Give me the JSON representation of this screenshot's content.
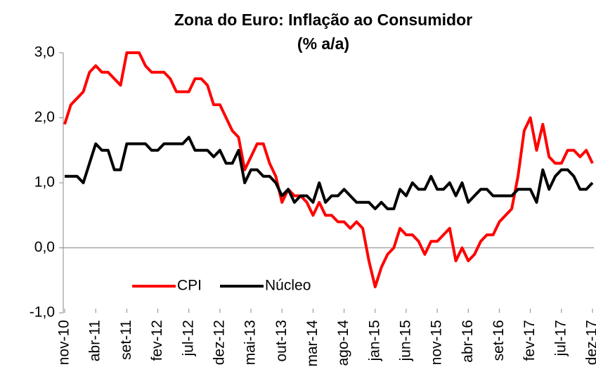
{
  "chart_data": {
    "type": "line",
    "title": "Zona do Euro: Inflação ao Consumidor",
    "subtitle": "(% a/a)",
    "categories": [
      "nov-10",
      null,
      null,
      null,
      null,
      "abr-11",
      null,
      null,
      null,
      null,
      "set-11",
      null,
      null,
      null,
      null,
      "fev-12",
      null,
      null,
      null,
      null,
      "jul-12",
      null,
      null,
      null,
      null,
      "dez-12",
      null,
      null,
      null,
      null,
      "mai-13",
      null,
      null,
      null,
      null,
      "out-13",
      null,
      null,
      null,
      null,
      "mar-14",
      null,
      null,
      null,
      null,
      "ago-14",
      null,
      null,
      null,
      null,
      "jan-15",
      null,
      null,
      null,
      null,
      "jun-15",
      null,
      null,
      null,
      null,
      "nov-15",
      null,
      null,
      null,
      null,
      "abr-16",
      null,
      null,
      null,
      null,
      "set-16",
      null,
      null,
      null,
      null,
      "fev-17",
      null,
      null,
      null,
      null,
      "jul-17",
      null,
      null,
      null,
      null,
      "dez-17"
    ],
    "series": [
      {
        "name": "CPI",
        "color": "#ff0000",
        "values": [
          1.9,
          2.2,
          2.3,
          2.4,
          2.7,
          2.8,
          2.7,
          2.7,
          2.6,
          2.5,
          3.0,
          3.0,
          3.0,
          2.8,
          2.7,
          2.7,
          2.7,
          2.6,
          2.4,
          2.4,
          2.4,
          2.6,
          2.6,
          2.5,
          2.2,
          2.2,
          2.0,
          1.8,
          1.7,
          1.2,
          1.4,
          1.6,
          1.6,
          1.3,
          1.1,
          0.7,
          0.9,
          0.8,
          0.8,
          0.7,
          0.5,
          0.7,
          0.5,
          0.5,
          0.4,
          0.4,
          0.3,
          0.4,
          0.3,
          -0.2,
          -0.6,
          -0.3,
          -0.1,
          0.0,
          0.3,
          0.2,
          0.2,
          0.1,
          -0.1,
          0.1,
          0.1,
          0.2,
          0.3,
          -0.2,
          0.0,
          -0.2,
          -0.1,
          0.1,
          0.2,
          0.2,
          0.4,
          0.5,
          0.6,
          1.1,
          1.8,
          2.0,
          1.5,
          1.9,
          1.4,
          1.3,
          1.3,
          1.5,
          1.5,
          1.4,
          1.5,
          1.3
        ]
      },
      {
        "name": "Núcleo",
        "color": "#000000",
        "values": [
          1.1,
          1.1,
          1.1,
          1.0,
          1.3,
          1.6,
          1.5,
          1.5,
          1.2,
          1.2,
          1.6,
          1.6,
          1.6,
          1.6,
          1.5,
          1.5,
          1.6,
          1.6,
          1.6,
          1.6,
          1.7,
          1.5,
          1.5,
          1.5,
          1.4,
          1.5,
          1.3,
          1.3,
          1.5,
          1.0,
          1.2,
          1.2,
          1.1,
          1.1,
          1.0,
          0.8,
          0.9,
          0.7,
          0.8,
          0.8,
          0.7,
          1.0,
          0.7,
          0.8,
          0.8,
          0.9,
          0.8,
          0.7,
          0.7,
          0.7,
          0.6,
          0.7,
          0.6,
          0.6,
          0.9,
          0.8,
          1.0,
          0.9,
          0.9,
          1.1,
          0.9,
          0.9,
          1.0,
          0.8,
          1.0,
          0.7,
          0.8,
          0.9,
          0.9,
          0.8,
          0.8,
          0.8,
          0.8,
          0.9,
          0.9,
          0.9,
          0.7,
          1.2,
          0.9,
          1.1,
          1.2,
          1.2,
          1.1,
          0.9,
          0.9,
          1.0
        ]
      }
    ],
    "ylim": [
      -1,
      3
    ],
    "yticks": [
      {
        "value": -1,
        "label": "-1,0"
      },
      {
        "value": 0,
        "label": "0,0"
      },
      {
        "value": 1,
        "label": "1,0"
      },
      {
        "value": 2,
        "label": "2,0"
      },
      {
        "value": 3,
        "label": "3,0"
      }
    ],
    "grid": false,
    "legend": "bottom-left"
  }
}
